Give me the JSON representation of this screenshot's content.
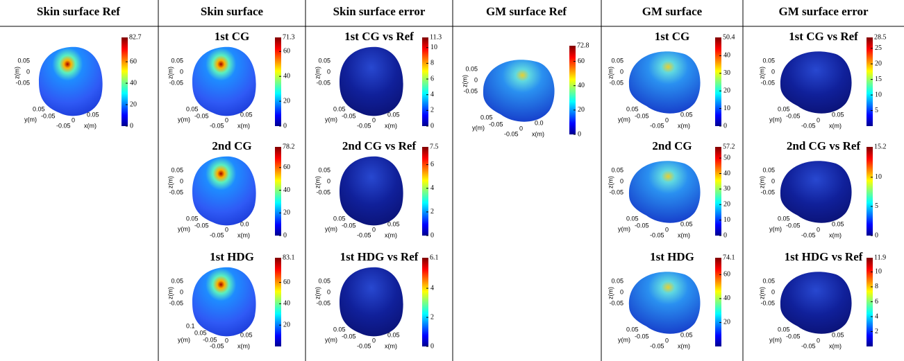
{
  "columns": [
    {
      "header": "Skin surface Ref",
      "panels": [
        {
          "cbar_max": "82.7",
          "cbar_ticks": [
            60,
            40,
            20,
            0
          ],
          "z_ticks": [
            "0.05",
            "0",
            "-0.05"
          ],
          "y_ticks": [
            "0.05",
            "-0.05"
          ],
          "x_ticks": [
            "-0.05",
            "0",
            "0.05"
          ],
          "z_label": "z(m)",
          "y_label": "y(m)",
          "x_label": "x(m)"
        }
      ]
    },
    {
      "header": "Skin surface",
      "panels": [
        {
          "title": "1st CG",
          "cbar_max": "71.3",
          "cbar_ticks": [
            60,
            40,
            20,
            0
          ],
          "z_ticks": [
            "0.05",
            "0",
            "-0.05"
          ],
          "y_ticks": [
            "0.05",
            "-0.05"
          ],
          "x_ticks": [
            "-0.05",
            "0",
            "0.05"
          ],
          "z_label": "z(m)",
          "y_label": "y(m)",
          "x_label": "x(m)"
        },
        {
          "title": "2nd CG",
          "cbar_max": "78.2",
          "cbar_ticks": [
            60,
            40,
            20,
            0
          ],
          "z_ticks": [
            "0.05",
            "0",
            "-0.05"
          ],
          "y_ticks": [
            "0.05",
            "-0.05"
          ],
          "x_ticks": [
            "-0.05",
            "0",
            "0.0"
          ],
          "z_label": "z(m)",
          "y_label": "y(m)",
          "x_label": "x(m)"
        },
        {
          "title": "1st HDG",
          "cbar_max": "83.1",
          "cbar_ticks": [
            60,
            40,
            20
          ],
          "z_ticks": [
            "0.05",
            "0",
            "-0.05"
          ],
          "y_ticks": [
            "0.1",
            "0.05",
            "-0.05"
          ],
          "x_ticks": [
            "-0.05",
            "0",
            "0.05"
          ],
          "z_label": "z(m)",
          "y_label": "y(m)",
          "x_label": "x(m)"
        }
      ]
    },
    {
      "header": "Skin surface error",
      "panels": [
        {
          "title": "1st CG vs Ref",
          "cbar_max": "11.3",
          "cbar_ticks": [
            10,
            8,
            6,
            4,
            2,
            0
          ],
          "z_ticks": [
            "0.05",
            "0",
            "-0.05"
          ],
          "y_ticks": [
            "0.05",
            "-0.05"
          ],
          "x_ticks": [
            "-0.05",
            "0",
            "0.05"
          ],
          "z_label": "z(m)",
          "y_label": "y(m)",
          "x_label": "x(m)"
        },
        {
          "title": "2nd CG vs Ref",
          "cbar_max": "7.5",
          "cbar_ticks": [
            6,
            4,
            2,
            0
          ],
          "z_ticks": [
            "0.05",
            "0",
            "-0.05"
          ],
          "y_ticks": [
            "0.05",
            "-0.05"
          ],
          "x_ticks": [
            "-0.05",
            "0",
            "0.05"
          ],
          "z_label": "z(m)",
          "y_label": "y(m)",
          "x_label": "x(m)"
        },
        {
          "title": "1st HDG vs Ref",
          "cbar_max": "6.1",
          "cbar_ticks": [
            4,
            2,
            0
          ],
          "z_ticks": [
            "0.05",
            "0",
            "-0.05"
          ],
          "y_ticks": [
            "0.05",
            "-0.05"
          ],
          "x_ticks": [
            "-0.05",
            "0",
            "0.05"
          ],
          "z_label": "z(m)",
          "y_label": "y(m)",
          "x_label": "x(m)"
        }
      ]
    },
    {
      "header": "GM  surface Ref",
      "panels": [
        {
          "cbar_max": "72.8",
          "cbar_ticks": [
            60,
            40,
            20,
            0
          ],
          "z_ticks": [
            "0.05",
            "0",
            "-0.05"
          ],
          "y_ticks": [
            "0.05",
            "-0.05"
          ],
          "x_ticks": [
            "-0.05",
            "0",
            "0.0"
          ],
          "z_label": "z(m)",
          "y_label": "y(m)",
          "x_label": "x(m)"
        }
      ]
    },
    {
      "header": "GM  surface",
      "panels": [
        {
          "title": "1st CG",
          "cbar_max": "50.4",
          "cbar_ticks": [
            40,
            30,
            20,
            10,
            0
          ],
          "z_ticks": [
            "0.05",
            "0",
            "-0.05"
          ],
          "y_ticks": [
            "0.05",
            "-0.05"
          ],
          "x_ticks": [
            "-0.05",
            "0",
            "0.05"
          ],
          "z_label": "z(m)",
          "y_label": "y(m)",
          "x_label": "x(m)"
        },
        {
          "title": "2nd CG",
          "cbar_max": "57.2",
          "cbar_ticks": [
            50,
            40,
            30,
            20,
            10,
            0
          ],
          "z_ticks": [
            "0.05",
            "0",
            "-0.05"
          ],
          "y_ticks": [
            "0.05",
            "-0.05"
          ],
          "x_ticks": [
            "-0.05",
            "0",
            "0.05"
          ],
          "z_label": "z(m)",
          "y_label": "y(m)",
          "x_label": "x(m)"
        },
        {
          "title": "1st HDG",
          "cbar_max": "74.1",
          "cbar_ticks": [
            60,
            40,
            20
          ],
          "z_ticks": [
            "0.05",
            "0",
            "-0.05"
          ],
          "y_ticks": [
            "0.05",
            "-0.05"
          ],
          "x_ticks": [
            "-0.05",
            "0",
            "0.05"
          ],
          "z_label": "z(m)",
          "y_label": "y(m)",
          "x_label": "x(m)"
        }
      ]
    },
    {
      "header": "GM surface error",
      "panels": [
        {
          "title": "1st CG vs Ref",
          "cbar_max": "28.5",
          "cbar_ticks": [
            25,
            20,
            15,
            10,
            5
          ],
          "z_ticks": [
            "0.05",
            "0",
            "-0.05"
          ],
          "y_ticks": [
            "0.05",
            "-0.05"
          ],
          "x_ticks": [
            "-0.05",
            "0",
            "0.05"
          ],
          "z_label": "z(m)",
          "y_label": "y(m)",
          "x_label": "x(m)"
        },
        {
          "title": "2nd CG vs Ref",
          "cbar_max": "15.2",
          "cbar_ticks": [
            10,
            5,
            0
          ],
          "z_ticks": [
            "0.05",
            "0",
            "-0.05"
          ],
          "y_ticks": [
            "0.05",
            "-0.05"
          ],
          "x_ticks": [
            "-0.05",
            "0",
            "0.05"
          ],
          "z_label": "z(m)",
          "y_label": "y(m)",
          "x_label": "x(m)"
        },
        {
          "title": "1st HDG vs Ref",
          "cbar_max": "11.9",
          "cbar_ticks": [
            10,
            8,
            6,
            4,
            2
          ],
          "z_ticks": [
            "0.05",
            "0",
            "-0.05"
          ],
          "y_ticks": [
            "0.05",
            "-0.05"
          ],
          "x_ticks": [
            "-0.05",
            "0",
            "0.05"
          ],
          "z_label": "z(m)",
          "y_label": "y(m)",
          "x_label": "x(m)"
        }
      ]
    }
  ]
}
